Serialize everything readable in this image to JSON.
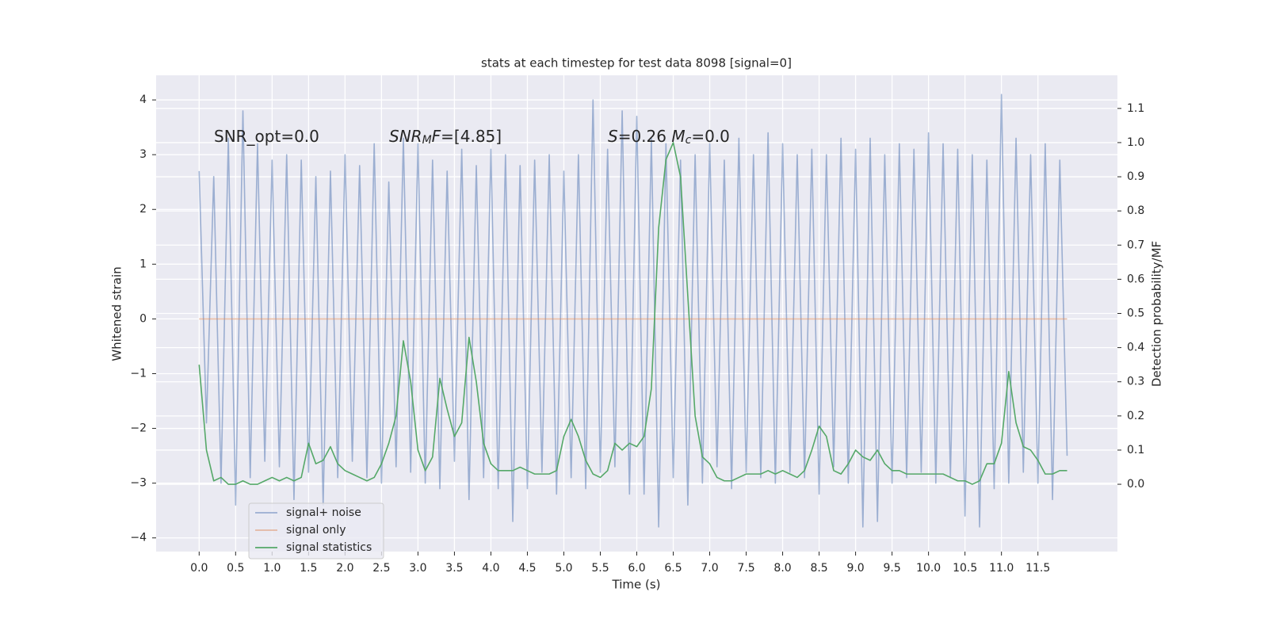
{
  "chart_data": {
    "type": "line",
    "title": "stats at each timestep for test data 8098 [signal=0]",
    "xlabel": "Time (s)",
    "ylabel": "Whitened strain",
    "y2label": "Detection probability/MF",
    "annotations": [
      [
        {
          "text": "SNR_opt=0.0",
          "style": "normal"
        }
      ],
      [
        {
          "text": "SNR",
          "style": "italic"
        },
        {
          "text": "M",
          "style": "sub"
        },
        {
          "text": "F",
          "style": "italic"
        },
        {
          "text": "=[4.85]",
          "style": "normal"
        }
      ],
      [
        {
          "text": "S",
          "style": "italic"
        },
        {
          "text": "=0.26   ",
          "style": "normal"
        },
        {
          "text": "M",
          "style": "italic"
        },
        {
          "text": "c",
          "style": "sub"
        },
        {
          "text": "=0.0",
          "style": "normal"
        }
      ]
    ],
    "x": [
      0,
      0.1,
      0.2,
      0.3,
      0.4,
      0.5,
      0.6,
      0.7,
      0.8,
      0.9,
      1,
      1.1,
      1.2,
      1.3,
      1.4,
      1.5,
      1.6,
      1.7,
      1.8,
      1.9,
      2,
      2.1,
      2.2,
      2.3,
      2.4,
      2.5,
      2.6,
      2.7,
      2.8,
      2.9,
      3,
      3.1,
      3.2,
      3.3,
      3.4,
      3.5,
      3.6,
      3.7,
      3.8,
      3.9,
      4,
      4.1,
      4.2,
      4.3,
      4.4,
      4.5,
      4.6,
      4.7,
      4.8,
      4.9,
      5,
      5.1,
      5.2,
      5.3,
      5.4,
      5.5,
      5.6,
      5.7,
      5.8,
      5.9,
      6,
      6.1,
      6.2,
      6.3,
      6.4,
      6.5,
      6.6,
      6.7,
      6.8,
      6.9,
      7,
      7.1,
      7.2,
      7.3,
      7.4,
      7.5,
      7.6,
      7.7,
      7.8,
      7.9,
      8,
      8.1,
      8.2,
      8.3,
      8.4,
      8.5,
      8.6,
      8.7,
      8.8,
      8.9,
      9,
      9.1,
      9.2,
      9.3,
      9.4,
      9.5,
      9.6,
      9.7,
      9.8,
      9.9,
      10,
      10.1,
      10.2,
      10.3,
      10.4,
      10.5,
      10.6,
      10.7,
      10.8,
      10.9,
      11,
      11.1,
      11.2,
      11.3,
      11.4,
      11.5,
      11.6,
      11.7,
      11.8,
      11.9
    ],
    "series": [
      {
        "name": "signal+ noise",
        "color": "#4c72b0",
        "opacity": 0.5,
        "axis": "y",
        "values": [
          2.7,
          -1.9,
          2.6,
          -3.0,
          3.3,
          -3.4,
          3.8,
          -2.9,
          3.2,
          -2.6,
          2.9,
          -2.7,
          3.0,
          -3.3,
          2.9,
          -2.8,
          2.6,
          -3.4,
          2.7,
          -2.9,
          3.0,
          -2.6,
          2.8,
          -2.9,
          3.2,
          -3.0,
          2.5,
          -2.7,
          3.3,
          -2.8,
          3.2,
          -3.0,
          2.9,
          -3.1,
          2.7,
          -2.6,
          3.1,
          -3.3,
          2.8,
          -2.9,
          3.1,
          -3.1,
          3.0,
          -3.7,
          2.8,
          -3.1,
          2.9,
          -2.8,
          3.0,
          -3.2,
          2.7,
          -2.9,
          3.0,
          -3.1,
          4.0,
          -2.8,
          3.1,
          -2.7,
          3.8,
          -3.2,
          3.7,
          -3.2,
          3.3,
          -3.8,
          3.2,
          -2.9,
          2.9,
          -3.4,
          3.0,
          -3.0,
          3.2,
          -2.7,
          2.9,
          -3.1,
          3.3,
          -2.8,
          3.0,
          -2.9,
          3.4,
          -3.0,
          3.2,
          -2.8,
          3.0,
          -2.9,
          3.1,
          -3.2,
          3.0,
          -2.7,
          3.3,
          -3.0,
          3.1,
          -3.8,
          3.3,
          -3.7,
          3.0,
          -3.0,
          3.2,
          -2.9,
          3.1,
          -2.8,
          3.4,
          -3.0,
          3.2,
          -2.9,
          3.1,
          -3.6,
          3.0,
          -3.8,
          2.9,
          -3.1,
          4.1,
          -3.0,
          3.3,
          -2.8,
          3.0,
          -3.0,
          3.2,
          -3.3,
          2.9,
          -2.5
        ]
      },
      {
        "name": "signal only",
        "color": "#dd8452",
        "opacity": 0.5,
        "axis": "y",
        "values": [
          0,
          0,
          0,
          0,
          0,
          0,
          0,
          0,
          0,
          0,
          0,
          0,
          0,
          0,
          0,
          0,
          0,
          0,
          0,
          0,
          0,
          0,
          0,
          0,
          0,
          0,
          0,
          0,
          0,
          0,
          0,
          0,
          0,
          0,
          0,
          0,
          0,
          0,
          0,
          0,
          0,
          0,
          0,
          0,
          0,
          0,
          0,
          0,
          0,
          0,
          0,
          0,
          0,
          0,
          0,
          0,
          0,
          0,
          0,
          0,
          0,
          0,
          0,
          0,
          0,
          0,
          0,
          0,
          0,
          0,
          0,
          0,
          0,
          0,
          0,
          0,
          0,
          0,
          0,
          0,
          0,
          0,
          0,
          0,
          0,
          0,
          0,
          0,
          0,
          0,
          0,
          0,
          0,
          0,
          0,
          0,
          0,
          0,
          0,
          0,
          0,
          0,
          0,
          0,
          0,
          0,
          0,
          0,
          0,
          0,
          0,
          0,
          0,
          0,
          0,
          0,
          0,
          0,
          0,
          0
        ]
      },
      {
        "name": "signal statistics",
        "color": "#55a868",
        "opacity": 1,
        "axis": "y2",
        "values": [
          0.35,
          0.1,
          0.01,
          0.02,
          0.0,
          0.0,
          0.01,
          0.0,
          0.0,
          0.01,
          0.02,
          0.01,
          0.02,
          0.01,
          0.02,
          0.12,
          0.06,
          0.07,
          0.11,
          0.06,
          0.04,
          0.03,
          0.02,
          0.01,
          0.02,
          0.06,
          0.12,
          0.2,
          0.42,
          0.3,
          0.1,
          0.04,
          0.08,
          0.31,
          0.22,
          0.14,
          0.18,
          0.43,
          0.3,
          0.12,
          0.06,
          0.04,
          0.04,
          0.04,
          0.05,
          0.04,
          0.03,
          0.03,
          0.03,
          0.04,
          0.14,
          0.19,
          0.14,
          0.07,
          0.03,
          0.02,
          0.04,
          0.12,
          0.1,
          0.12,
          0.11,
          0.14,
          0.28,
          0.75,
          0.95,
          1.0,
          0.9,
          0.55,
          0.2,
          0.08,
          0.06,
          0.02,
          0.01,
          0.01,
          0.02,
          0.03,
          0.03,
          0.03,
          0.04,
          0.03,
          0.04,
          0.03,
          0.02,
          0.04,
          0.1,
          0.17,
          0.14,
          0.04,
          0.03,
          0.06,
          0.1,
          0.08,
          0.07,
          0.1,
          0.06,
          0.04,
          0.04,
          0.03,
          0.03,
          0.03,
          0.03,
          0.03,
          0.03,
          0.02,
          0.01,
          0.01,
          0.0,
          0.01,
          0.06,
          0.06,
          0.12,
          0.33,
          0.18,
          0.11,
          0.1,
          0.07,
          0.03,
          0.03,
          0.04,
          0.04
        ]
      }
    ],
    "xlim": [
      -0.59,
      12.59
    ],
    "xticks": [
      {
        "value": 0,
        "label": "0.0"
      },
      0.5,
      {
        "value": 1,
        "label": "1.0"
      },
      1.5,
      {
        "value": 2,
        "label": "2.0"
      },
      2.5,
      {
        "value": 3,
        "label": "3.0"
      },
      3.5,
      {
        "value": 4,
        "label": "4.0"
      },
      4.5,
      {
        "value": 5,
        "label": "5.0"
      },
      5.5,
      {
        "value": 6,
        "label": "6.0"
      },
      6.5,
      {
        "value": 7,
        "label": "7.0"
      },
      7.5,
      {
        "value": 8,
        "label": "8.0"
      },
      8.5,
      {
        "value": 9,
        "label": "9.0"
      },
      9.5,
      {
        "value": 10,
        "label": "10.0"
      },
      10.5,
      {
        "value": 11,
        "label": "11.0"
      },
      11.5
    ],
    "ylim": [
      -4.25,
      4.45
    ],
    "yticks": [
      {
        "value": -4,
        "label": "−4"
      },
      {
        "value": -3,
        "label": "−3"
      },
      {
        "value": -2,
        "label": "−2"
      },
      {
        "value": -1,
        "label": "−1"
      },
      0,
      1,
      2,
      3,
      4
    ],
    "y2lim": [
      -0.197,
      1.197
    ],
    "y2ticks": [
      {
        "value": 0,
        "label": "0.0"
      },
      0.1,
      0.2,
      0.3,
      0.4,
      0.5,
      0.6,
      0.7,
      0.8,
      0.9,
      {
        "value": 1,
        "label": "1.0"
      },
      1.1
    ],
    "grid": true,
    "legend": "lower left",
    "background": "#eaeaf2"
  }
}
